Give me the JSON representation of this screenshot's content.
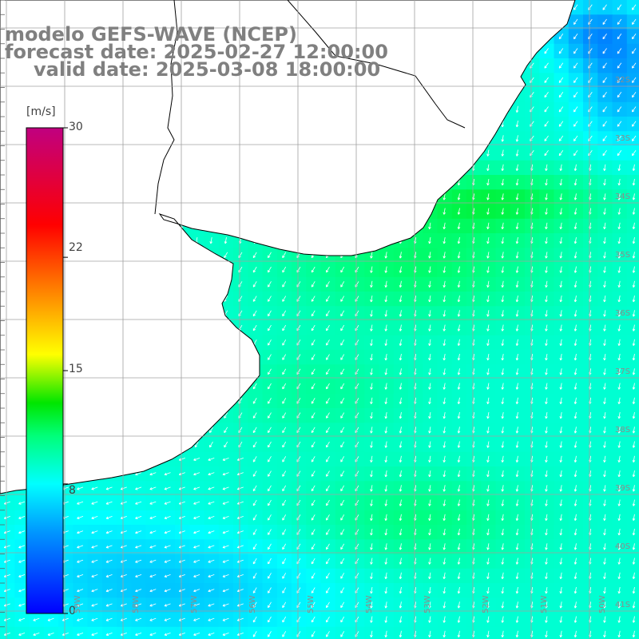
{
  "title": {
    "line1": "modelo GEFS-WAVE (NCEP)",
    "line2": "forecast date: 2025-02-27 12:00:00",
    "line3": "valid date: 2025-03-08 18:00:00"
  },
  "colorbar": {
    "unit": "[m/s]",
    "min": 0,
    "max": 30,
    "ticks": [
      "30",
      "22",
      "15",
      "8",
      "0"
    ],
    "tick_values": [
      30,
      22,
      15,
      8,
      0
    ],
    "stops": [
      "#0000ff",
      "#00aaff",
      "#00ffff",
      "#00ff00",
      "#ffff00",
      "#ff8000",
      "#ff0000",
      "#c00080"
    ]
  },
  "map": {
    "lat_labels": [
      "32S",
      "33S",
      "34S",
      "35S",
      "36S",
      "37S",
      "38S",
      "39S",
      "40S",
      "41S"
    ],
    "lon_labels": [
      "59W",
      "58W",
      "57W",
      "56W",
      "55W",
      "54W",
      "53W",
      "52W",
      "51W",
      "50W"
    ],
    "land_color": "#ffffff",
    "coast_color": "#000000",
    "grid_color": "#a0a0a0",
    "arrow_color": "#ffffff"
  },
  "chart_data": {
    "type": "heatmap",
    "variable": "wind speed",
    "unit": "m/s",
    "ylim": [
      -41.5,
      -31.5
    ],
    "xlim": [
      -60,
      -49
    ],
    "notes": "wind field over Rio de la Plata / SW Atlantic; speeds mostly 7-12 m/s, southerly winds offshore"
  }
}
